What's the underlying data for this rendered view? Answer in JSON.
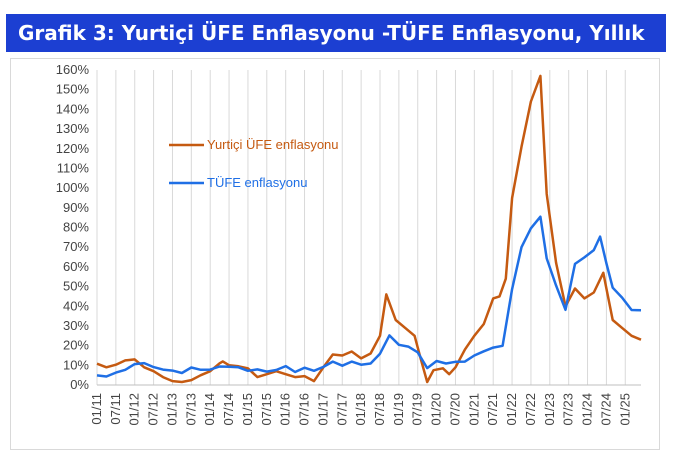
{
  "title": "Grafik 3: Yurtiçi ÜFE Enflasyonu -TÜFE Enflasyonu, Yıllık",
  "chart_data": {
    "type": "line",
    "title": "Grafik 3: Yurtiçi ÜFE Enflasyonu -TÜFE Enflasyonu, Yıllık",
    "xlabel": "",
    "ylabel": "",
    "ylim": [
      0,
      160
    ],
    "yticks": [
      "0%",
      "10%",
      "20%",
      "30%",
      "40%",
      "50%",
      "60%",
      "70%",
      "80%",
      "90%",
      "100%",
      "110%",
      "120%",
      "130%",
      "140%",
      "150%",
      "160%"
    ],
    "xticks": [
      "01/11",
      "07/11",
      "01/12",
      "07/12",
      "01/13",
      "07/13",
      "01/14",
      "07/14",
      "01/15",
      "07/15",
      "01/16",
      "07/16",
      "01/17",
      "07/17",
      "01/18",
      "07/18",
      "01/19",
      "07/19",
      "01/20",
      "07/20",
      "01/21",
      "07/21",
      "01/22",
      "07/22",
      "01/23",
      "07/23",
      "01/24",
      "07/24",
      "01/25"
    ],
    "xrange": [
      "2011-01",
      "2025-06"
    ],
    "grid": "vertical",
    "legend_position": "upper-left",
    "series": [
      {
        "name": "Yurtiçi ÜFE enflasyonu",
        "color": "#c55a11",
        "points": [
          [
            "2011-01",
            10.8
          ],
          [
            "2011-04",
            9.0
          ],
          [
            "2011-07",
            10.3
          ],
          [
            "2011-10",
            12.5
          ],
          [
            "2012-01",
            13.0
          ],
          [
            "2012-04",
            9.0
          ],
          [
            "2012-07",
            7.0
          ],
          [
            "2012-10",
            4.0
          ],
          [
            "2013-01",
            2.0
          ],
          [
            "2013-04",
            1.5
          ],
          [
            "2013-07",
            2.5
          ],
          [
            "2013-10",
            5.0
          ],
          [
            "2014-01",
            7.0
          ],
          [
            "2014-04",
            11.0
          ],
          [
            "2014-05",
            12.0
          ],
          [
            "2014-07",
            10.0
          ],
          [
            "2014-10",
            9.5
          ],
          [
            "2015-01",
            8.5
          ],
          [
            "2015-04",
            4.0
          ],
          [
            "2015-07",
            5.5
          ],
          [
            "2015-10",
            7.0
          ],
          [
            "2016-01",
            5.5
          ],
          [
            "2016-04",
            4.0
          ],
          [
            "2016-07",
            4.5
          ],
          [
            "2016-10",
            2.0
          ],
          [
            "2017-01",
            9.0
          ],
          [
            "2017-04",
            15.5
          ],
          [
            "2017-07",
            15.0
          ],
          [
            "2017-10",
            17.0
          ],
          [
            "2018-01",
            13.5
          ],
          [
            "2018-04",
            16.0
          ],
          [
            "2018-07",
            25.0
          ],
          [
            "2018-09",
            46.0
          ],
          [
            "2018-12",
            33.0
          ],
          [
            "2019-03",
            29.0
          ],
          [
            "2019-06",
            25.0
          ],
          [
            "2019-08",
            13.0
          ],
          [
            "2019-10",
            1.5
          ],
          [
            "2019-12",
            7.5
          ],
          [
            "2020-03",
            8.5
          ],
          [
            "2020-05",
            5.5
          ],
          [
            "2020-07",
            9.0
          ],
          [
            "2020-10",
            18.0
          ],
          [
            "2021-01",
            25.0
          ],
          [
            "2021-04",
            31.0
          ],
          [
            "2021-07",
            44.0
          ],
          [
            "2021-09",
            45.0
          ],
          [
            "2021-11",
            54.0
          ],
          [
            "2022-01",
            95.0
          ],
          [
            "2022-04",
            121.0
          ],
          [
            "2022-07",
            144.0
          ],
          [
            "2022-10",
            157.0
          ],
          [
            "2022-12",
            97.0
          ],
          [
            "2023-03",
            62.0
          ],
          [
            "2023-06",
            40.0
          ],
          [
            "2023-09",
            49.0
          ],
          [
            "2023-12",
            44.0
          ],
          [
            "2024-03",
            47.0
          ],
          [
            "2024-06",
            57.0
          ],
          [
            "2024-07",
            49.0
          ],
          [
            "2024-09",
            33.0
          ],
          [
            "2024-12",
            29.0
          ],
          [
            "2025-03",
            25.0
          ],
          [
            "2025-06",
            23.0
          ]
        ]
      },
      {
        "name": "TÜFE enflasyonu",
        "color": "#1f6fe5",
        "points": [
          [
            "2011-01",
            4.9
          ],
          [
            "2011-04",
            4.3
          ],
          [
            "2011-07",
            6.3
          ],
          [
            "2011-10",
            7.7
          ],
          [
            "2012-01",
            10.6
          ],
          [
            "2012-04",
            11.1
          ],
          [
            "2012-07",
            9.1
          ],
          [
            "2012-10",
            7.8
          ],
          [
            "2013-01",
            7.3
          ],
          [
            "2013-04",
            6.1
          ],
          [
            "2013-07",
            8.9
          ],
          [
            "2013-10",
            7.7
          ],
          [
            "2014-01",
            7.8
          ],
          [
            "2014-04",
            9.4
          ],
          [
            "2014-07",
            9.3
          ],
          [
            "2014-10",
            9.0
          ],
          [
            "2015-01",
            7.2
          ],
          [
            "2015-04",
            7.9
          ],
          [
            "2015-07",
            6.8
          ],
          [
            "2015-10",
            7.6
          ],
          [
            "2016-01",
            9.6
          ],
          [
            "2016-04",
            6.6
          ],
          [
            "2016-07",
            8.8
          ],
          [
            "2016-10",
            7.2
          ],
          [
            "2017-01",
            9.2
          ],
          [
            "2017-04",
            11.9
          ],
          [
            "2017-07",
            9.8
          ],
          [
            "2017-10",
            11.9
          ],
          [
            "2018-01",
            10.3
          ],
          [
            "2018-04",
            10.9
          ],
          [
            "2018-07",
            15.9
          ],
          [
            "2018-10",
            25.2
          ],
          [
            "2019-01",
            20.4
          ],
          [
            "2019-04",
            19.5
          ],
          [
            "2019-07",
            16.6
          ],
          [
            "2019-10",
            8.6
          ],
          [
            "2020-01",
            12.2
          ],
          [
            "2020-04",
            10.9
          ],
          [
            "2020-07",
            11.8
          ],
          [
            "2020-10",
            11.9
          ],
          [
            "2021-01",
            15.0
          ],
          [
            "2021-04",
            17.1
          ],
          [
            "2021-07",
            19.0
          ],
          [
            "2021-10",
            19.9
          ],
          [
            "2022-01",
            48.7
          ],
          [
            "2022-04",
            70.0
          ],
          [
            "2022-07",
            79.6
          ],
          [
            "2022-10",
            85.5
          ],
          [
            "2022-12",
            64.3
          ],
          [
            "2023-03",
            50.5
          ],
          [
            "2023-06",
            38.2
          ],
          [
            "2023-09",
            61.5
          ],
          [
            "2023-12",
            64.8
          ],
          [
            "2024-03",
            68.5
          ],
          [
            "2024-05",
            75.4
          ],
          [
            "2024-07",
            61.8
          ],
          [
            "2024-09",
            49.4
          ],
          [
            "2024-12",
            44.4
          ],
          [
            "2025-03",
            38.1
          ],
          [
            "2025-06",
            38.0
          ]
        ]
      }
    ]
  }
}
